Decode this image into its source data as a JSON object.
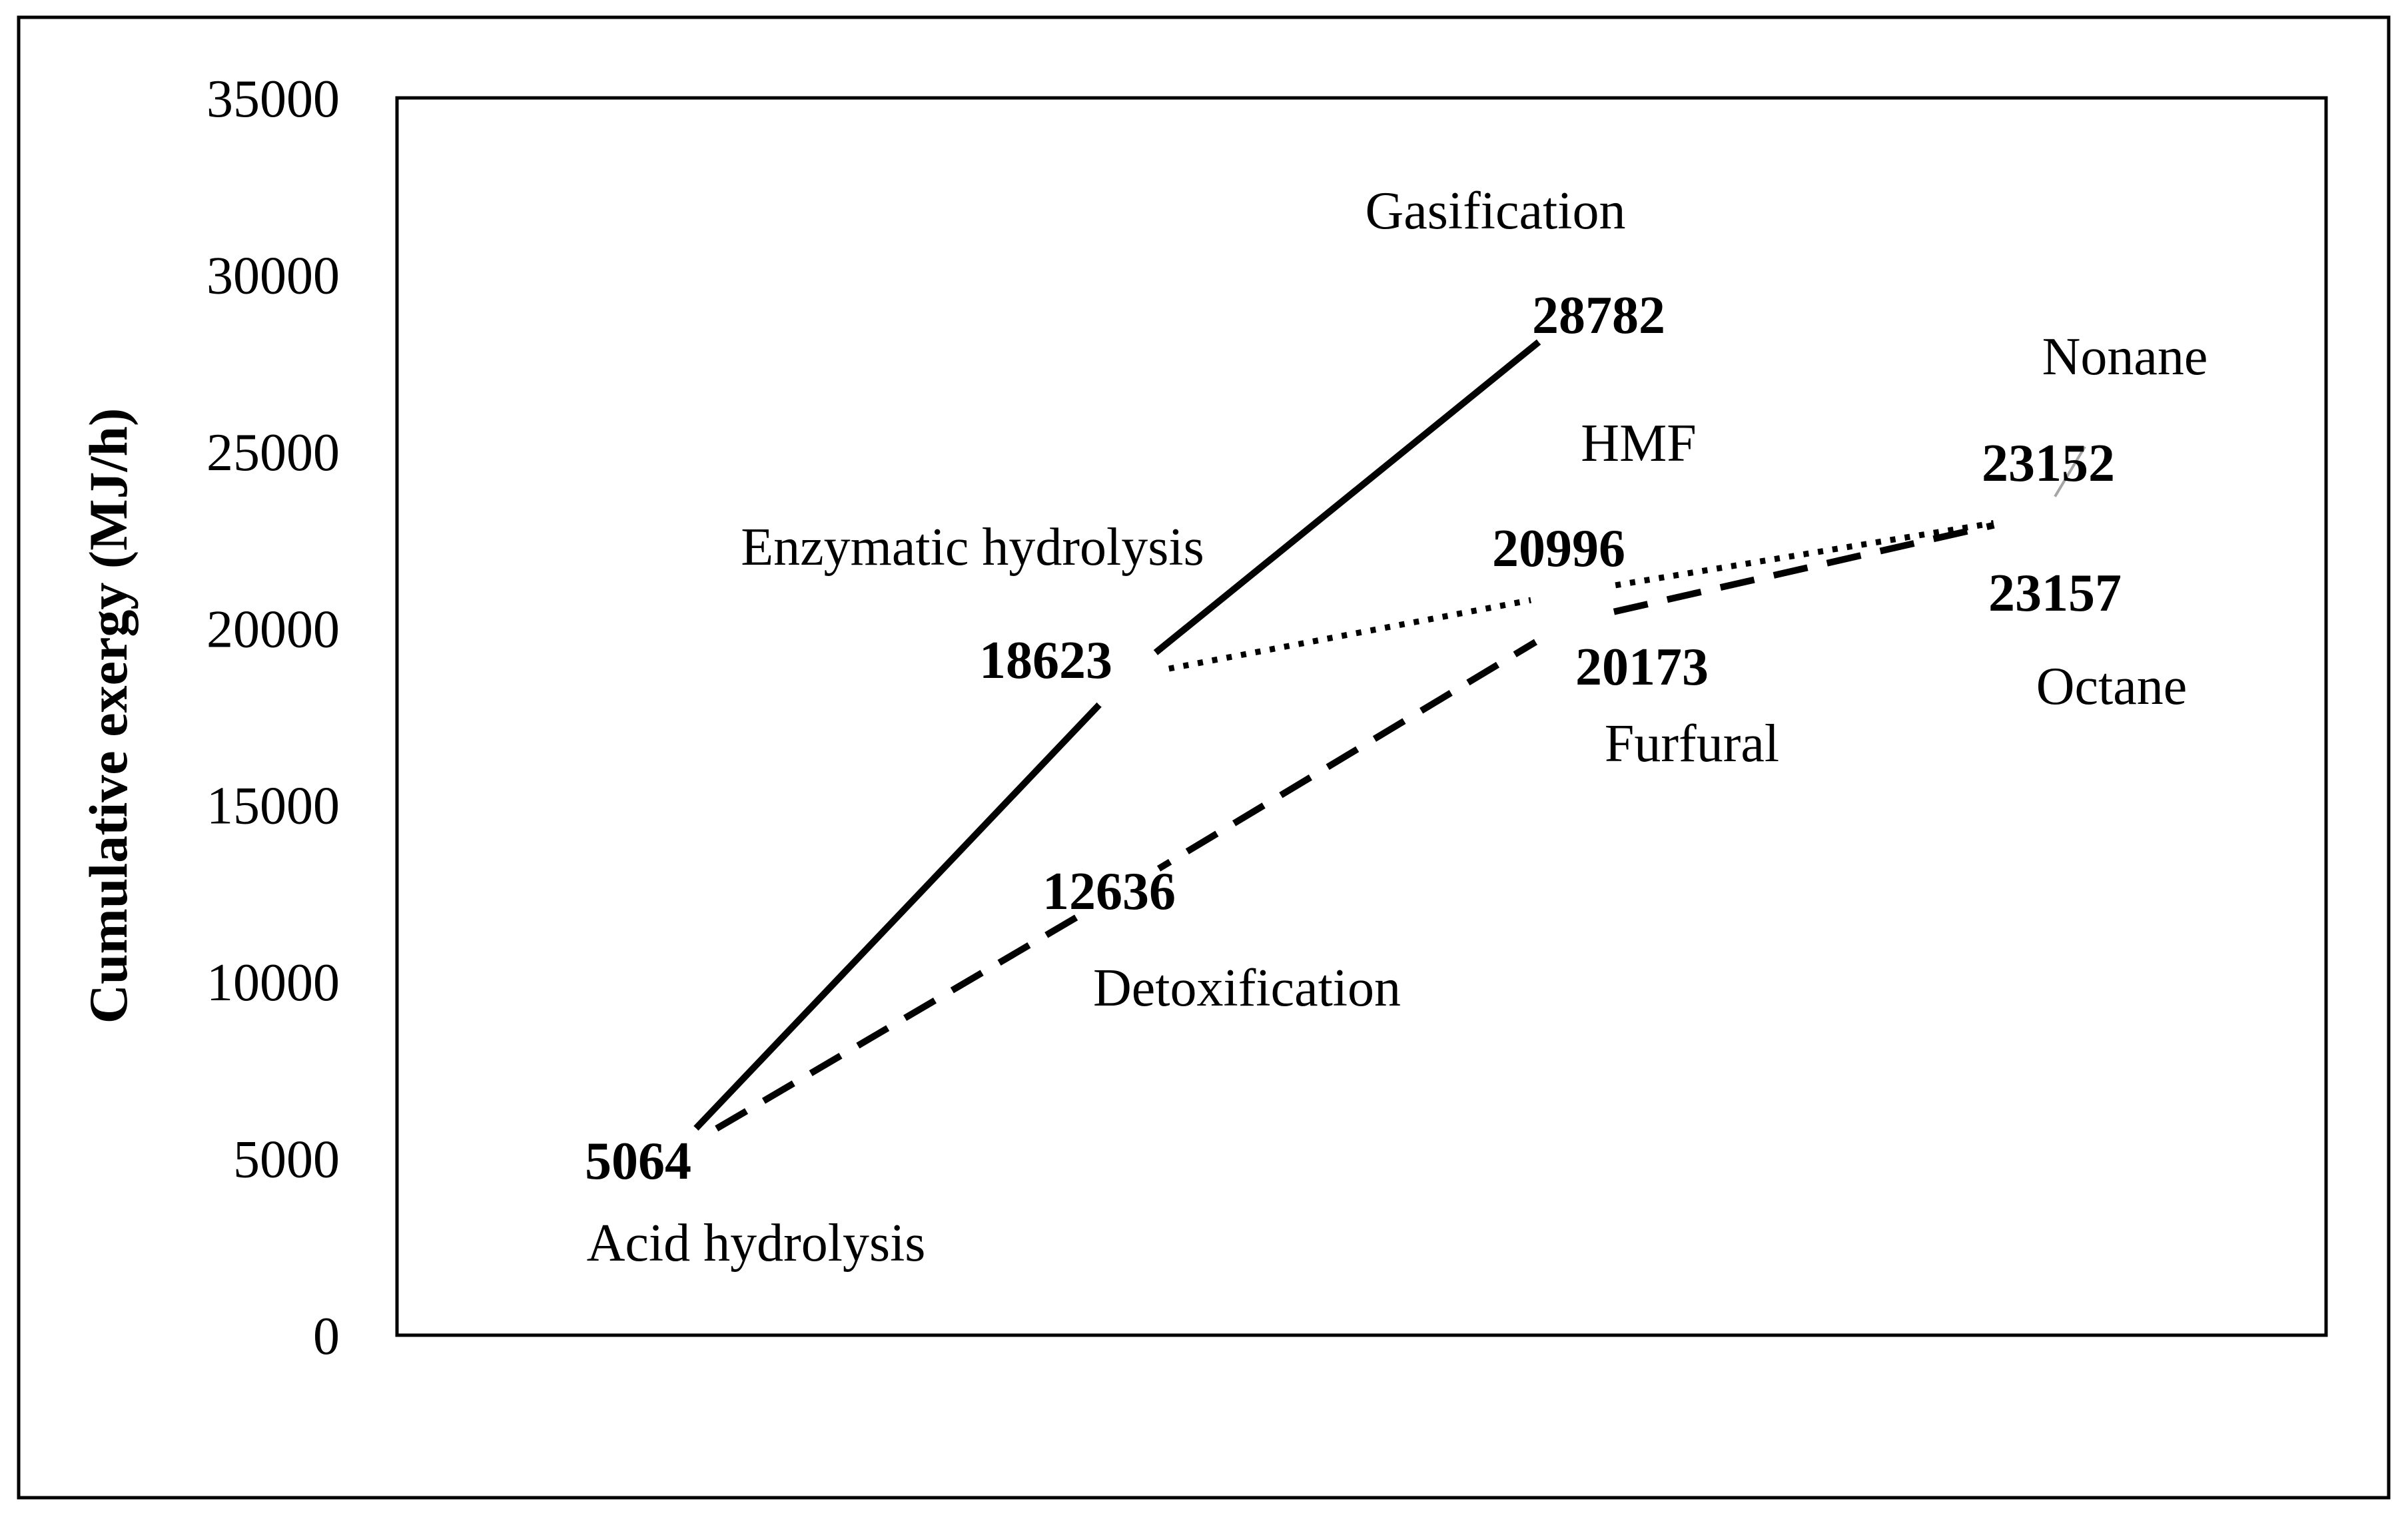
{
  "chart_data": {
    "type": "line",
    "title": "",
    "ylabel": "Cumulative exergy (MJ/h)",
    "xlabel": "",
    "ylim": [
      0,
      35000
    ],
    "yticks": [
      "0",
      "5000",
      "10000",
      "15000",
      "20000",
      "25000",
      "30000",
      "35000"
    ],
    "grid": false,
    "legend": "none",
    "series": [
      {
        "style": "solid",
        "color": "#000000",
        "points": [
          {
            "stage": "Acid hydrolysis",
            "step": 0,
            "value": 5064,
            "label": "5064"
          },
          {
            "stage": "Enzymatic hydrolysis",
            "step": 1,
            "value": 18623,
            "label": "18623"
          },
          {
            "stage": "Gasification",
            "step": 2,
            "value": 28782,
            "label": "28782"
          }
        ]
      },
      {
        "style": "dotted",
        "color": "#000000",
        "points": [
          {
            "stage": "Enzymatic hydrolysis",
            "step": 1,
            "value": 18623,
            "label": ""
          },
          {
            "stage": "HMF",
            "step": 2,
            "value": 20996,
            "label": "20996"
          },
          {
            "stage": "Nonane",
            "step": 3,
            "value": 23152,
            "label": "23152"
          }
        ]
      },
      {
        "style": "dashed",
        "color": "#000000",
        "points": [
          {
            "stage": "Acid hydrolysis",
            "step": 0,
            "value": 5064,
            "label": ""
          },
          {
            "stage": "Detoxification",
            "step": 1,
            "value": 12636,
            "label": "12636"
          },
          {
            "stage": "Furfural",
            "step": 2,
            "value": 20173,
            "label": "20173"
          },
          {
            "stage": "Octane",
            "step": 3,
            "value": 23157,
            "label": "23157"
          }
        ]
      }
    ],
    "stage_labels": [
      "Gasification",
      "Nonane",
      "HMF",
      "Enzymatic hydrolysis",
      "Furfural",
      "Octane",
      "Detoxification",
      "Acid hydrolysis"
    ],
    "value_labels": [
      "28782",
      "23152",
      "20996",
      "18623",
      "20173",
      "23157",
      "12636",
      "5064"
    ]
  }
}
